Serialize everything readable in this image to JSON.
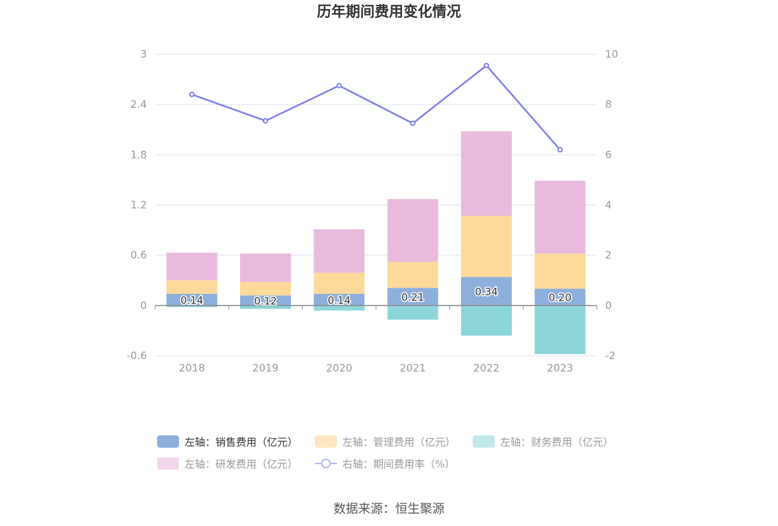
{
  "title": "历年期间费用变化情况",
  "source": "数据来源：恒生聚源",
  "chart_data": {
    "type": "bar",
    "stacked": true,
    "categories": [
      "2018",
      "2019",
      "2020",
      "2021",
      "2022",
      "2023"
    ],
    "y_left": {
      "ylim": [
        -0.6,
        3
      ],
      "ticks": [
        "3",
        "2.4",
        "1.8",
        "1.2",
        "0.6",
        "0",
        "-0.6"
      ]
    },
    "y_right": {
      "ylim": [
        -2,
        10
      ],
      "ticks": [
        "10",
        "8",
        "6",
        "4",
        "2",
        "0",
        "-2"
      ]
    },
    "series": [
      {
        "name": "左轴：销售费用（亿元）",
        "axis": "left",
        "kind": "bar",
        "color": "#8eafdc",
        "values": [
          0.14,
          0.12,
          0.14,
          0.21,
          0.34,
          0.2
        ],
        "labels": [
          "0.14",
          "0.12",
          "0.14",
          "0.21",
          "0.34",
          "0.20"
        ]
      },
      {
        "name": "左轴：管理费用（亿元）",
        "axis": "left",
        "kind": "bar",
        "color": "#fdd99a",
        "values": [
          0.16,
          0.16,
          0.25,
          0.31,
          0.73,
          0.42
        ]
      },
      {
        "name": "左轴：财务费用（亿元）",
        "axis": "left",
        "kind": "bar",
        "color": "#8cd6d9",
        "values": [
          -0.02,
          -0.04,
          -0.06,
          -0.17,
          -0.36,
          -0.58
        ]
      },
      {
        "name": "左轴：研发费用（亿元）",
        "axis": "left",
        "kind": "bar",
        "color": "#e8bbdc",
        "values": [
          0.33,
          0.34,
          0.52,
          0.75,
          1.01,
          0.87
        ]
      },
      {
        "name": "右轴：期间费用率（%）",
        "axis": "right",
        "kind": "line",
        "color": "#7f80ee",
        "values": [
          8.4,
          7.35,
          8.75,
          7.25,
          9.55,
          6.2
        ]
      }
    ],
    "legend_position": "bottom",
    "grid": true
  }
}
